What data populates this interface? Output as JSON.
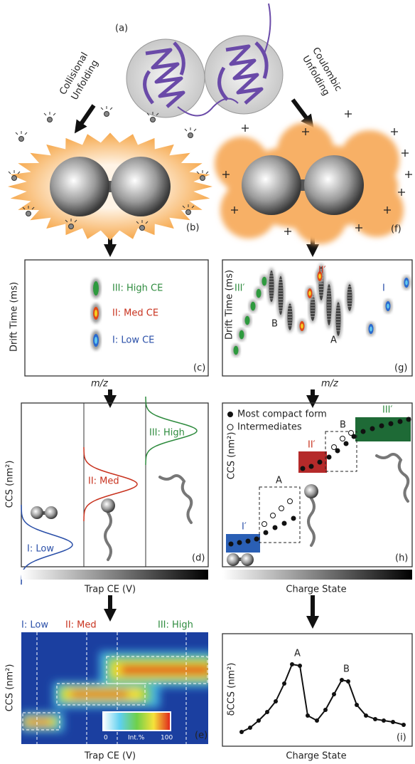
{
  "panel_a": {
    "label": "(a)",
    "collisional": [
      "Collisional",
      "Unfolding"
    ],
    "coulombic": [
      "Coulombic",
      "Unfolding"
    ]
  },
  "panel_b": {
    "label": "(b)"
  },
  "panel_f": {
    "label": "(f)"
  },
  "panel_c": {
    "label": "(c)",
    "y_axis": "Drift Time (ms)",
    "x_axis": "m/z",
    "peaks": [
      "III: High CE",
      "II: Med CE",
      "I: Low CE"
    ]
  },
  "panel_g": {
    "label": "(g)",
    "y_axis": "Drift Time (ms)",
    "x_axis": "m/z",
    "states": [
      "III′",
      "II′",
      "I"
    ],
    "peaks": [
      "B",
      "A"
    ]
  },
  "panel_d": {
    "label": "(d)",
    "y_axis": "CCS (nm²)",
    "x_axis": "Trap CE (V)",
    "states": [
      "III: High",
      "II: Med",
      "I: Low"
    ]
  },
  "panel_h": {
    "label": "(h)",
    "y_axis": "CCS (nm²)",
    "x_axis": "Charge State",
    "legend": [
      "Most compact form",
      "Intermediates"
    ],
    "states": [
      "III′",
      "II′",
      "I′"
    ],
    "groups": [
      "A",
      "B"
    ]
  },
  "panel_e": {
    "label": "(e)",
    "y_axis": "CCS (nm²)",
    "x_axis": "Trap CE (V)",
    "states": [
      "I: Low",
      "II: Med",
      "III: High"
    ],
    "colorbar": {
      "min": "0",
      "title": "Int.%",
      "max": "100"
    }
  },
  "panel_i": {
    "label": "(i)",
    "y_axis": "δCCS (nm²)",
    "x_axis": "Charge State",
    "peaks": [
      "A",
      "B"
    ]
  }
}
